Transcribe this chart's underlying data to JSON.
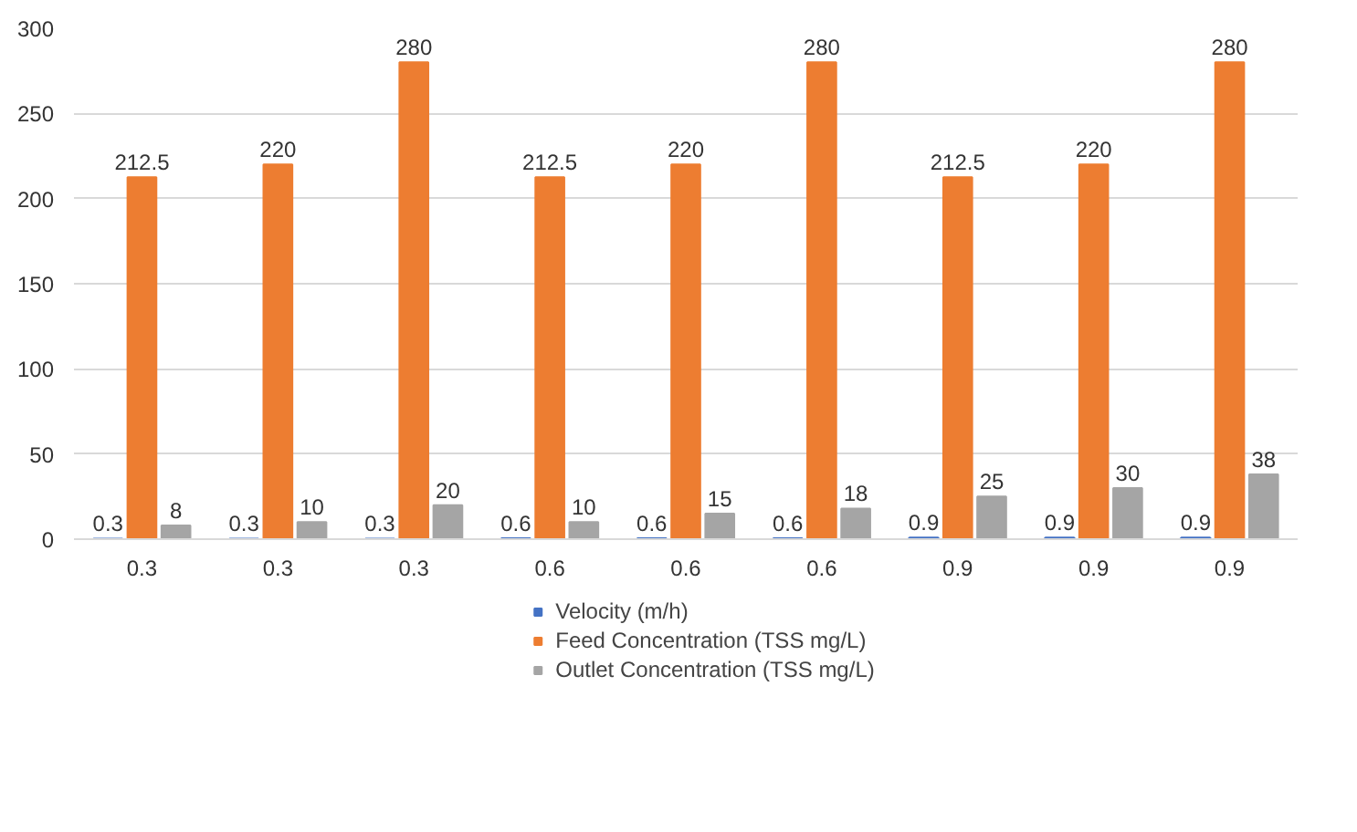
{
  "chart_data": {
    "type": "bar",
    "categories": [
      "0.3",
      "0.3",
      "0.3",
      "0.6",
      "0.6",
      "0.6",
      "0.9",
      "0.9",
      "0.9"
    ],
    "series": [
      {
        "name": "Velocity (m/h)",
        "color": "#4472c4",
        "values": [
          0.3,
          0.3,
          0.3,
          0.6,
          0.6,
          0.6,
          0.9,
          0.9,
          0.9
        ]
      },
      {
        "name": "Feed Concentration (TSS mg/L)",
        "color": "#ed7d31",
        "values": [
          212.5,
          220,
          280,
          212.5,
          220,
          280,
          212.5,
          220,
          280
        ]
      },
      {
        "name": "Outlet Concentration (TSS mg/L)",
        "color": "#a5a5a5",
        "values": [
          8,
          10,
          20,
          10,
          15,
          18,
          25,
          30,
          38
        ]
      }
    ],
    "ylim": [
      0,
      300
    ],
    "yticks": [
      0,
      50,
      100,
      150,
      200,
      250,
      300
    ],
    "grid": "y",
    "legend": "bottom",
    "data_labels": true
  }
}
